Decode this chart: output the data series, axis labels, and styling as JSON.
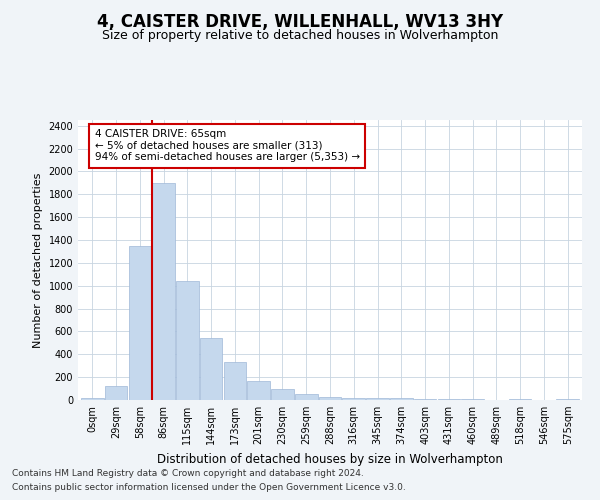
{
  "title": "4, CAISTER DRIVE, WILLENHALL, WV13 3HY",
  "subtitle": "Size of property relative to detached houses in Wolverhampton",
  "xlabel": "Distribution of detached houses by size in Wolverhampton",
  "ylabel": "Number of detached properties",
  "categories": [
    "0sqm",
    "29sqm",
    "58sqm",
    "86sqm",
    "115sqm",
    "144sqm",
    "173sqm",
    "201sqm",
    "230sqm",
    "259sqm",
    "288sqm",
    "316sqm",
    "345sqm",
    "374sqm",
    "403sqm",
    "431sqm",
    "460sqm",
    "489sqm",
    "518sqm",
    "546sqm",
    "575sqm"
  ],
  "values": [
    20,
    120,
    1350,
    1900,
    1040,
    540,
    330,
    165,
    100,
    50,
    30,
    20,
    20,
    15,
    10,
    5,
    10,
    0,
    5,
    0,
    10
  ],
  "bar_color": "#c5d8ed",
  "bar_edge_color": "#a0b8d8",
  "vline_x": 2.5,
  "vline_color": "#cc0000",
  "annotation_text": "4 CAISTER DRIVE: 65sqm\n← 5% of detached houses are smaller (313)\n94% of semi-detached houses are larger (5,353) →",
  "annotation_box_color": "#ffffff",
  "annotation_box_edge_color": "#cc0000",
  "ylim": [
    0,
    2450
  ],
  "yticks": [
    0,
    200,
    400,
    600,
    800,
    1000,
    1200,
    1400,
    1600,
    1800,
    2000,
    2200,
    2400
  ],
  "bg_color": "#f0f4f8",
  "plot_bg_color": "#ffffff",
  "footer1": "Contains HM Land Registry data © Crown copyright and database right 2024.",
  "footer2": "Contains public sector information licensed under the Open Government Licence v3.0.",
  "title_fontsize": 12,
  "subtitle_fontsize": 9,
  "xlabel_fontsize": 8.5,
  "ylabel_fontsize": 8,
  "tick_fontsize": 7,
  "footer_fontsize": 6.5,
  "annotation_fontsize": 7.5
}
